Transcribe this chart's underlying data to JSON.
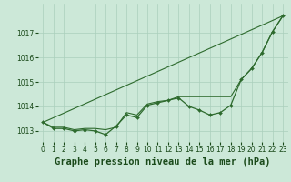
{
  "title": "Graphe pression niveau de la mer (hPa)",
  "background_color": "#cce8d8",
  "grid_color": "#aacfbc",
  "line_color": "#2d6a2d",
  "xlim": [
    -0.5,
    23.5
  ],
  "ylim": [
    1012.55,
    1018.2
  ],
  "yticks": [
    1013,
    1014,
    1015,
    1016,
    1017
  ],
  "xticks": [
    0,
    1,
    2,
    3,
    4,
    5,
    6,
    7,
    8,
    9,
    10,
    11,
    12,
    13,
    14,
    15,
    16,
    17,
    18,
    19,
    20,
    21,
    22,
    23
  ],
  "series1_x": [
    0,
    1,
    2,
    3,
    4,
    5,
    6,
    7,
    8,
    9,
    10,
    11,
    12,
    13,
    14,
    15,
    16,
    17,
    18,
    19,
    20,
    21,
    22,
    23
  ],
  "series1_y": [
    1013.35,
    1013.1,
    1013.1,
    1013.0,
    1013.05,
    1013.0,
    1012.85,
    1013.2,
    1013.65,
    1013.55,
    1014.05,
    1014.15,
    1014.25,
    1014.35,
    1014.0,
    1013.85,
    1013.65,
    1013.75,
    1014.05,
    1015.1,
    1015.55,
    1016.2,
    1017.05,
    1017.7
  ],
  "series2_x": [
    0,
    1,
    2,
    3,
    4,
    5,
    6,
    7,
    8,
    9,
    10,
    11,
    12,
    13,
    14,
    15,
    16,
    17,
    18,
    19,
    20,
    21,
    22,
    23
  ],
  "series2_y": [
    1013.35,
    1013.15,
    1013.15,
    1013.05,
    1013.1,
    1013.1,
    1013.05,
    1013.15,
    1013.75,
    1013.65,
    1014.1,
    1014.2,
    1014.25,
    1014.4,
    1014.4,
    1014.4,
    1014.4,
    1014.4,
    1014.4,
    1015.1,
    1015.55,
    1016.2,
    1017.05,
    1017.7
  ],
  "trend_x": [
    0,
    23
  ],
  "trend_y": [
    1013.35,
    1017.7
  ],
  "title_fontsize": 7.5,
  "tick_fontsize": 5.5
}
